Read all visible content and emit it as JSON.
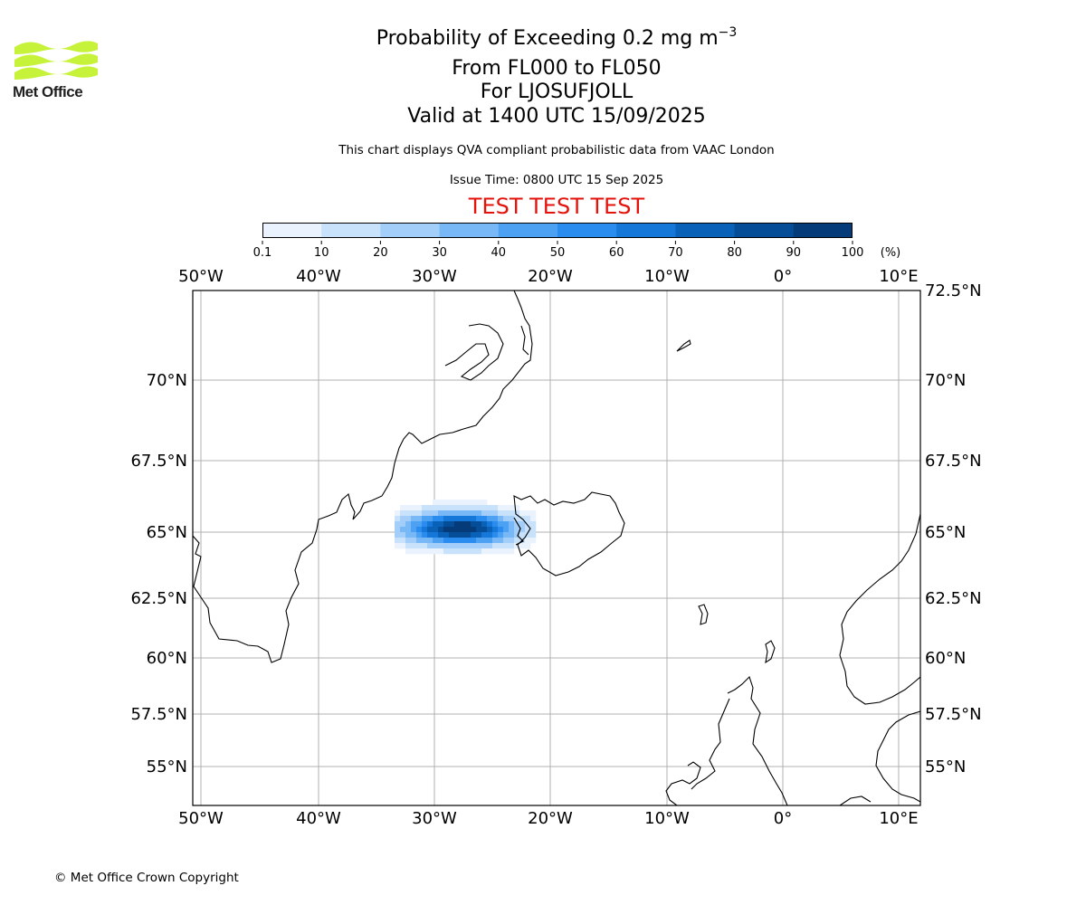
{
  "logo": {
    "text": "Met Office",
    "color": "#c6f23a"
  },
  "header": {
    "title_main": "Probability of Exceeding 0.2 mg m",
    "title_sup": "−3",
    "line2": "From FL000 to FL050",
    "line3": "For LJOSUFJOLL",
    "line4": "Valid at 1400 UTC 15/09/2025",
    "description": "This chart displays QVA compliant probabilistic data from VAAC London",
    "issue_time": "Issue Time: 0800 UTC 15 Sep 2025",
    "banner": "TEST TEST TEST",
    "banner_color": "#e3120b"
  },
  "colorbar": {
    "ticks": [
      "0.1",
      "10",
      "20",
      "30",
      "40",
      "50",
      "60",
      "70",
      "80",
      "90",
      "100"
    ],
    "unit": "(%)",
    "colors": [
      "#eaf3fd",
      "#c8e2fb",
      "#a3cef9",
      "#78b8f6",
      "#4ca1f3",
      "#2a8cee",
      "#1577d8",
      "#0a61b8",
      "#064d97",
      "#043b78",
      "#032a58"
    ]
  },
  "map": {
    "lon_labels": [
      "50°W",
      "40°W",
      "30°W",
      "20°W",
      "10°W",
      "0°",
      "10°E"
    ],
    "lat_labels": [
      "72.5°N",
      "70°N",
      "67.5°N",
      "65°N",
      "62.5°N",
      "60°N",
      "57.5°N",
      "55°N"
    ],
    "grid_color": "#b0b0b0"
  },
  "footer": {
    "copyright": "© Met Office Crown Copyright"
  }
}
